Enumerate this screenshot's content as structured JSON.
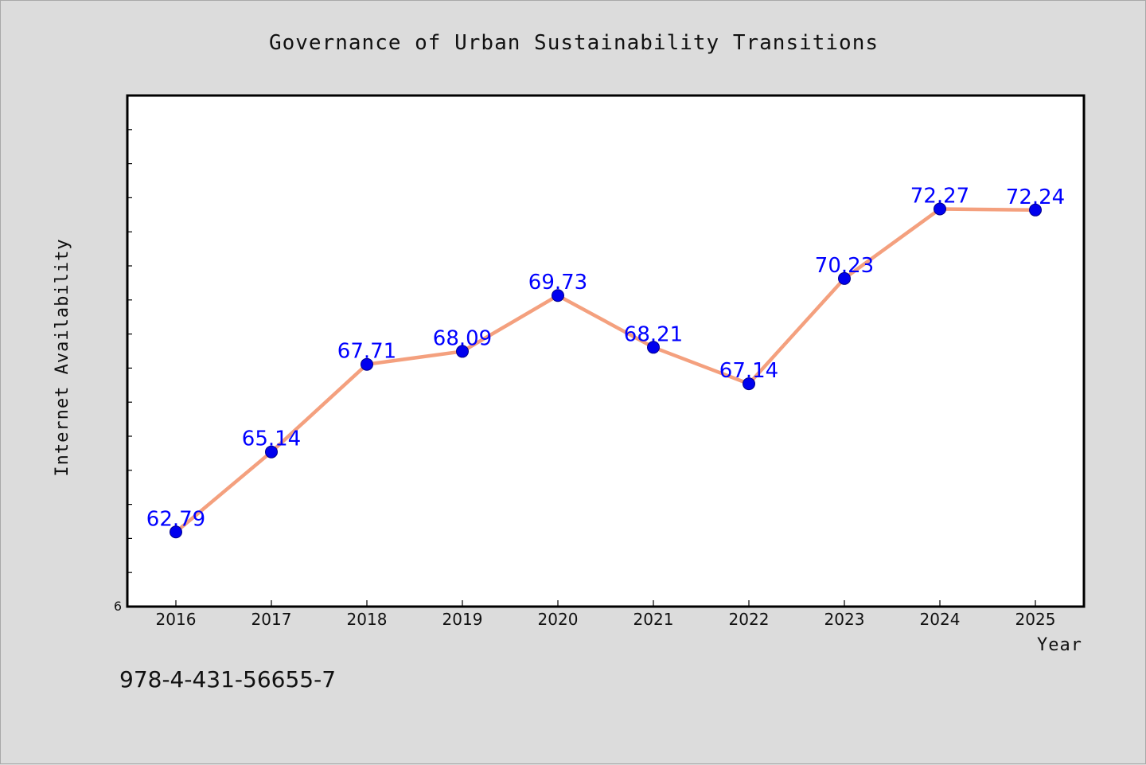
{
  "chart_data": {
    "type": "line",
    "title": "Governance of Urban Sustainability Transitions",
    "xlabel": "Year",
    "ylabel": "Internet Availability",
    "categories": [
      "2016",
      "2017",
      "2018",
      "2019",
      "2020",
      "2021",
      "2022",
      "2023",
      "2024",
      "2025"
    ],
    "series": [
      {
        "values": [
          62.79,
          65.14,
          67.71,
          68.09,
          69.73,
          68.21,
          67.14,
          70.23,
          72.27,
          72.24
        ],
        "data_labels": [
          "62.79",
          "65.14",
          "67.71",
          "68.09",
          "69.73",
          "68.21",
          "67.14",
          "70.23",
          "72.27",
          "72.24"
        ]
      }
    ],
    "ylim": [
      60.6,
      75.6
    ],
    "y_tick_labels_shown": [
      "6"
    ],
    "grid": false,
    "line_color": "#f4a07e",
    "marker_color": "#0000ee",
    "label_color": "#0000ff"
  },
  "footer": {
    "isbn": "978-4-431-56655-7"
  },
  "colors": {
    "background": "#dcdcdc",
    "plot_background": "#ffffff",
    "frame": "#000000"
  }
}
